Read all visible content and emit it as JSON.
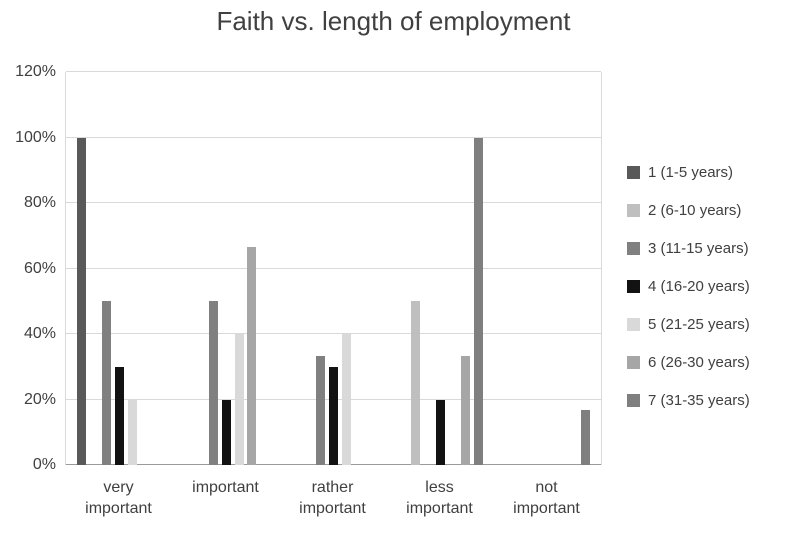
{
  "title": "Faith vs. length of employment",
  "chart_data": {
    "type": "bar",
    "title": "Faith vs. length of employment",
    "categories": [
      "very important",
      "important",
      "rather important",
      "less important",
      "not important"
    ],
    "category_labels": [
      "very\nimportant",
      "important",
      "rather\nimportant",
      "less\nimportant",
      "not\nimportant"
    ],
    "series": [
      {
        "name": "1 (1-5 years)",
        "color": "#595959",
        "values": [
          100,
          0,
          0,
          0,
          0
        ]
      },
      {
        "name": "2 (6-10 years)",
        "color": "#bfbfbf",
        "values": [
          0,
          0,
          0,
          50,
          0
        ]
      },
      {
        "name": "3 (11-15 years)",
        "color": "#808080",
        "values": [
          50,
          50,
          33.3,
          0,
          0
        ]
      },
      {
        "name": "4 (16-20 years)",
        "color": "#121212",
        "values": [
          30,
          20,
          30,
          20,
          0
        ]
      },
      {
        "name": "5 (21-25 years)",
        "color": "#d9d9d9",
        "values": [
          20,
          40,
          40,
          0,
          0
        ]
      },
      {
        "name": "6 (26-30 years)",
        "color": "#a6a6a6",
        "values": [
          0,
          66.7,
          0,
          33.3,
          0
        ]
      },
      {
        "name": "7 (31-35 years)",
        "color": "#7f7f7f",
        "values": [
          0,
          0,
          0,
          100,
          16.7
        ]
      }
    ],
    "y_axis": {
      "min": 0,
      "max": 120,
      "step": 20,
      "ticks": [
        "0%",
        "20%",
        "40%",
        "60%",
        "80%",
        "100%",
        "120%"
      ],
      "unit": "%"
    },
    "legend_position": "right",
    "grid": true,
    "xlabel": "",
    "ylabel": ""
  }
}
